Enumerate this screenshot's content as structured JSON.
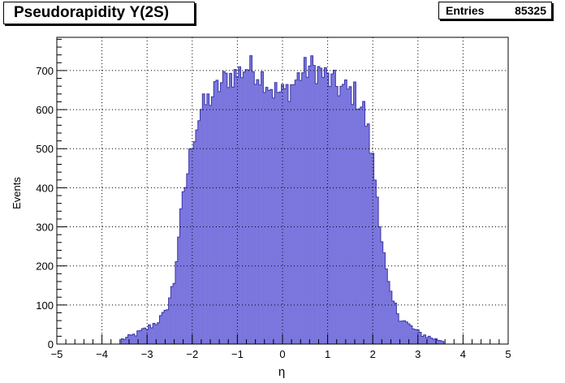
{
  "chart_data": {
    "type": "bar",
    "title": "Pseudorapidity Υ(2S)",
    "xlabel": "η",
    "ylabel": "Events",
    "xlim": [
      -5,
      5
    ],
    "ylim": [
      0,
      785
    ],
    "x_ticks": [
      -5,
      -4,
      -3,
      -2,
      -1,
      0,
      1,
      2,
      3,
      4,
      5
    ],
    "y_ticks": [
      0,
      100,
      200,
      300,
      400,
      500,
      600,
      700
    ],
    "grid": true,
    "legend": "none",
    "stats": {
      "entries_label": "Entries",
      "entries_value": "85325"
    },
    "bin_width": 0.05,
    "bin_centers_range": [
      -3.55,
      3.55
    ],
    "profile_x": [
      -3.6,
      -3.4,
      -3.2,
      -3.0,
      -2.8,
      -2.6,
      -2.4,
      -2.3,
      -2.2,
      -2.1,
      -2.0,
      -1.9,
      -1.8,
      -1.6,
      -1.4,
      -1.2,
      -1.0,
      -0.8,
      -0.6,
      -0.4,
      -0.2,
      0.0,
      0.2,
      0.4,
      0.6,
      0.8,
      1.0,
      1.2,
      1.4,
      1.6,
      1.8,
      1.9,
      2.0,
      2.1,
      2.2,
      2.3,
      2.4,
      2.6,
      2.8,
      3.0,
      3.2,
      3.4,
      3.6
    ],
    "profile_y": [
      10,
      18,
      28,
      40,
      55,
      78,
      160,
      280,
      370,
      440,
      520,
      560,
      600,
      630,
      660,
      685,
      690,
      710,
      700,
      680,
      650,
      640,
      660,
      690,
      710,
      700,
      680,
      660,
      650,
      640,
      600,
      540,
      470,
      380,
      270,
      180,
      120,
      70,
      48,
      30,
      20,
      12,
      8
    ],
    "bar_color": "#7b76dd",
    "bar_edge_color": "#3a36a8",
    "grid_color": "#000000"
  }
}
